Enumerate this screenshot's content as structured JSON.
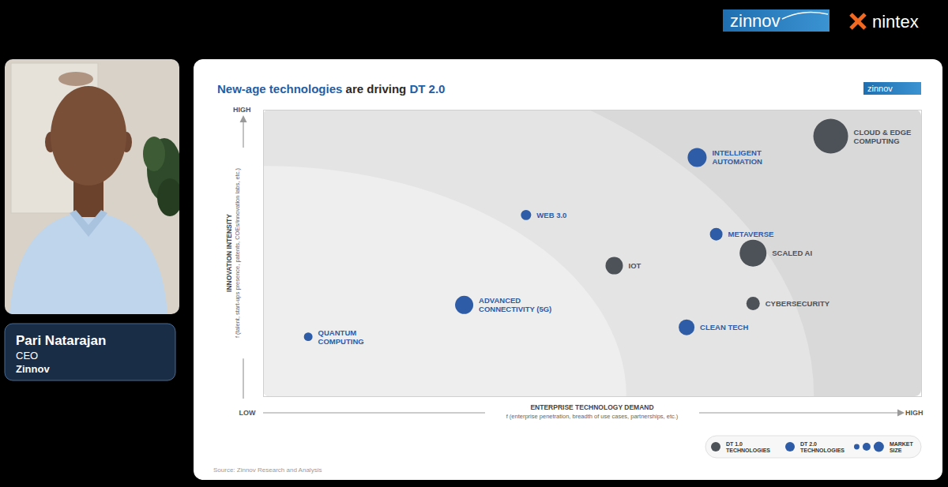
{
  "page": {
    "logos": [
      "zinnov",
      "nintex"
    ],
    "speaker": {
      "name": "Pari Natarajan",
      "role": "CEO",
      "company": "Zinnov"
    }
  },
  "slide": {
    "title": [
      {
        "text": "New-age technologies",
        "color": "#1f5fa8"
      },
      {
        "text": " are driving ",
        "color": "#2b2b2b"
      },
      {
        "text": "DT 2.0",
        "color": "#1f5fa8"
      }
    ],
    "logo": "zinnov",
    "source": "Source: Zinnov Research and Analysis"
  },
  "chart_data": {
    "type": "scatter",
    "x_label": "ENTERPRISE TECHNOLOGY DEMAND",
    "x_sublabel": "f (enterprise penetration, breadth of use cases, partnerships, etc.)",
    "y_label": "INNOVATION INTENSITY",
    "y_sublabel": "f (talent, start-ups presence, patents, COEs/innovation labs, etc.)",
    "xlim": [
      0,
      100
    ],
    "ylim": [
      0,
      100
    ],
    "xticks": [
      {
        "value": 0,
        "label": "LOW"
      },
      {
        "value": 100,
        "label": "HIGH"
      }
    ],
    "yticks": [
      {
        "value": 100,
        "label": "HIGH"
      }
    ],
    "grid": false,
    "legend": "bottom-right",
    "marker": "circle",
    "series": [
      {
        "name": "DT 1.0\nTECHNOLOGIES",
        "color": "#4d5258",
        "labels": [
          "CLOUD & EDGE\nCOMPUTING",
          "SCALED AI",
          "IOT",
          "CYBERSECURITY"
        ],
        "x": [
          86.2,
          74.4,
          53.3,
          74.4
        ],
        "y": [
          90.9,
          50.1,
          45.7,
          32.5
        ],
        "sizes": [
          484,
          289,
          121,
          72
        ]
      },
      {
        "name": "DT 2.0\nTECHNOLOGIES",
        "color": "#2e5ca6",
        "labels": [
          "INTELLIGENT\nAUTOMATION",
          "WEB 3.0",
          "METAVERSE",
          "ADVANCED\nCONNECTIVITY (5G)",
          "CLEAN TECH",
          "QUANTUM\nCOMPUTING"
        ],
        "x": [
          65.9,
          39.9,
          68.8,
          30.5,
          64.3,
          6.8
        ],
        "y": [
          83.5,
          63.4,
          56.7,
          32.0,
          24.2,
          20.9
        ],
        "sizes": [
          144,
          42,
          64,
          132,
          100,
          30
        ]
      }
    ],
    "size_legend": {
      "title": "MARKET\nSIZE",
      "sizes": [
        12,
        25,
        42
      ]
    }
  }
}
